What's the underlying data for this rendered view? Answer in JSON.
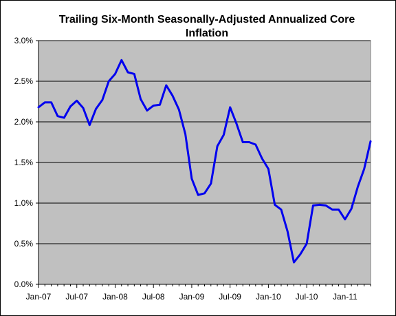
{
  "chart_data": {
    "type": "line",
    "title_lines": [
      "Trailing Six-Month Seasonally-Adjusted Annualized Core",
      "Inflation"
    ],
    "xlabel": "",
    "ylabel": "",
    "x_tick_labels": [
      "Jan-07",
      "Jul-07",
      "Jan-08",
      "Jul-08",
      "Jan-09",
      "Jul-09",
      "Jan-10",
      "Jul-10",
      "Jan-11"
    ],
    "y_tick_labels": [
      "0.0%",
      "0.5%",
      "1.0%",
      "1.5%",
      "2.0%",
      "2.5%",
      "3.0%"
    ],
    "ylim": [
      0.0,
      3.0
    ],
    "y_ticks": [
      0.0,
      0.5,
      1.0,
      1.5,
      2.0,
      2.5,
      3.0
    ],
    "grid": true,
    "legend": "none",
    "x_start": "2007-01",
    "x_end": "2011-05",
    "series": [
      {
        "color": "#0000ee",
        "x": [
          "2007-01",
          "2007-02",
          "2007-03",
          "2007-04",
          "2007-05",
          "2007-06",
          "2007-07",
          "2007-08",
          "2007-09",
          "2007-10",
          "2007-11",
          "2007-12",
          "2008-01",
          "2008-02",
          "2008-03",
          "2008-04",
          "2008-05",
          "2008-06",
          "2008-07",
          "2008-08",
          "2008-09",
          "2008-10",
          "2008-11",
          "2008-12",
          "2009-01",
          "2009-02",
          "2009-03",
          "2009-04",
          "2009-05",
          "2009-06",
          "2009-07",
          "2009-08",
          "2009-09",
          "2009-10",
          "2009-11",
          "2009-12",
          "2010-01",
          "2010-02",
          "2010-03",
          "2010-04",
          "2010-05",
          "2010-06",
          "2010-07",
          "2010-08",
          "2010-09",
          "2010-10",
          "2010-11",
          "2010-12",
          "2011-01",
          "2011-02",
          "2011-03",
          "2011-04",
          "2011-05"
        ],
        "values": [
          2.18,
          2.24,
          2.24,
          2.07,
          2.05,
          2.19,
          2.26,
          2.17,
          1.96,
          2.16,
          2.27,
          2.5,
          2.59,
          2.76,
          2.61,
          2.59,
          2.28,
          2.14,
          2.2,
          2.21,
          2.45,
          2.32,
          2.15,
          1.85,
          1.3,
          1.1,
          1.12,
          1.24,
          1.7,
          1.84,
          2.18,
          1.98,
          1.75,
          1.75,
          1.72,
          1.55,
          1.42,
          0.98,
          0.92,
          0.65,
          0.27,
          0.37,
          0.5,
          0.97,
          0.98,
          0.97,
          0.92,
          0.92,
          0.8,
          0.93,
          1.2,
          1.42,
          1.76
        ]
      }
    ]
  },
  "colors": {
    "plot_background": "#c0c0c0",
    "gridline": "#000000",
    "series_line": "#0000ee"
  }
}
